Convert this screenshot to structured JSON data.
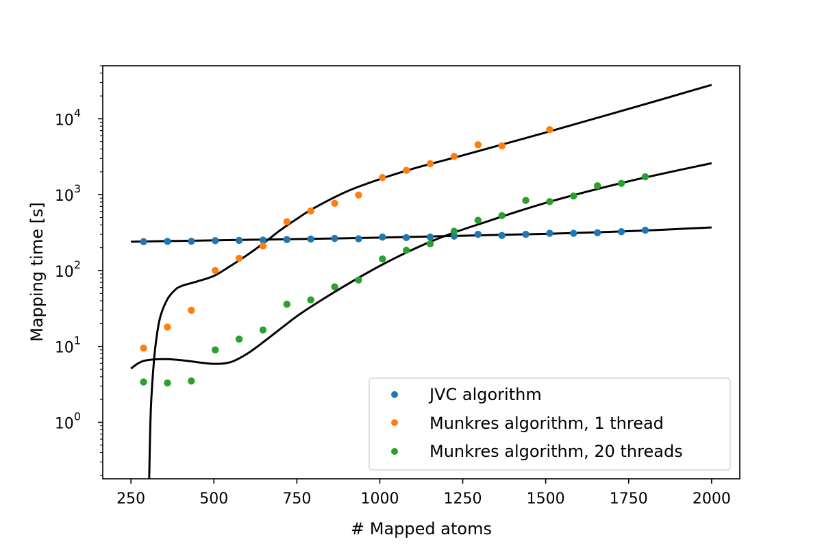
{
  "chart_data": {
    "type": "scatter",
    "xlabel": "# Mapped atoms",
    "ylabel": "Mapping time [s]",
    "xlim": [
      165,
      2085
    ],
    "ylim": [
      0.18,
      50000
    ],
    "y_scale": "log",
    "xticks": [
      250,
      500,
      750,
      1000,
      1250,
      1500,
      1750,
      2000
    ],
    "yticks": [
      {
        "value": 1,
        "base": "10",
        "exp": "0"
      },
      {
        "value": 10,
        "base": "10",
        "exp": "1"
      },
      {
        "value": 100,
        "base": "10",
        "exp": "2"
      },
      {
        "value": 1000,
        "base": "10",
        "exp": "3"
      },
      {
        "value": 10000,
        "base": "10",
        "exp": "4"
      }
    ],
    "grid": false,
    "legend_position": "lower-right",
    "series": [
      {
        "name": "JVC algorithm",
        "color": "#1f77b4",
        "x": [
          288,
          360,
          432,
          504,
          576,
          648,
          720,
          792,
          864,
          936,
          1008,
          1080,
          1152,
          1224,
          1296,
          1368,
          1440,
          1512,
          1584,
          1656,
          1728,
          1800
        ],
        "y": [
          240,
          242,
          243,
          248,
          250,
          252,
          256,
          260,
          265,
          262,
          276,
          272,
          276,
          284,
          300,
          290,
          300,
          310,
          310,
          315,
          325,
          340
        ]
      },
      {
        "name": "Munkres algorithm, 1 thread",
        "color": "#ff7f0e",
        "x": [
          288,
          360,
          432,
          504,
          576,
          648,
          720,
          792,
          864,
          936,
          1008,
          1080,
          1152,
          1224,
          1296,
          1368,
          1512
        ],
        "y": [
          9.5,
          18,
          30,
          100,
          145,
          210,
          440,
          610,
          770,
          990,
          1680,
          2090,
          2560,
          3200,
          4550,
          4400,
          7200
        ]
      },
      {
        "name": "Munkres algorithm, 20 threads",
        "color": "#2ca02c",
        "x": [
          288,
          360,
          432,
          504,
          576,
          648,
          720,
          792,
          864,
          936,
          1008,
          1080,
          1152,
          1224,
          1296,
          1368,
          1440,
          1512,
          1584,
          1656,
          1728,
          1800
        ],
        "y": [
          3.4,
          3.3,
          3.5,
          9,
          12.5,
          16.5,
          36,
          41,
          61,
          75,
          142,
          185,
          225,
          330,
          460,
          530,
          840,
          810,
          960,
          1310,
          1410,
          1720
        ]
      }
    ],
    "fit_curves": [
      {
        "color": "#000000",
        "x": [
          250,
          500,
          750,
          1000,
          1250,
          1500,
          1750,
          2000
        ],
        "y": [
          240,
          250,
          260,
          272,
          288,
          305,
          330,
          370
        ]
      },
      {
        "color": "#000000",
        "x": [
          305,
          310,
          320,
          330,
          340,
          360,
          380,
          400,
          450,
          500,
          550,
          600,
          650,
          700,
          750,
          800,
          900,
          1000,
          1100,
          1250,
          1500,
          1750,
          2000
        ],
        "y": [
          0.18,
          1.5,
          7,
          16,
          26,
          42,
          54,
          62,
          72,
          85,
          115,
          160,
          230,
          340,
          480,
          660,
          1100,
          1600,
          2200,
          3300,
          6600,
          13500,
          28000
        ]
      },
      {
        "color": "#000000",
        "x": [
          250,
          275,
          300,
          350,
          400,
          450,
          500,
          550,
          600,
          650,
          700,
          750,
          800,
          900,
          1000,
          1100,
          1200,
          1300,
          1500,
          1750,
          2000
        ],
        "y": [
          5.1,
          6.1,
          6.6,
          6.8,
          6.6,
          6.2,
          5.9,
          6.2,
          8.0,
          11.5,
          17,
          25,
          35,
          65,
          115,
          190,
          290,
          410,
          780,
          1500,
          2600
        ]
      }
    ]
  }
}
